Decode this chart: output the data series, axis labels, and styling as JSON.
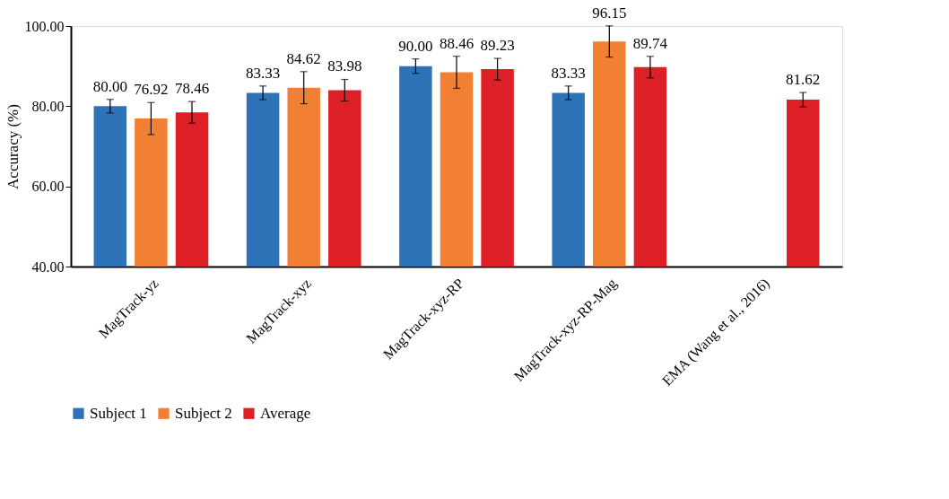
{
  "chart_data": {
    "type": "bar",
    "ylabel": "Accuracy (%)",
    "categories": [
      "MagTrack-yz",
      "MagTrack-xyz",
      "MagTrack-xyz-RP",
      "MagTrack-xyz-RP-Mag",
      "EMA (Wang et al., 2016)"
    ],
    "series": [
      {
        "name": "Subject 1",
        "color": "#2e72b8",
        "values": [
          80.0,
          83.33,
          90.0,
          83.33,
          null
        ],
        "value_labels": [
          "80.00",
          "83.33",
          "90.00",
          "83.33",
          null
        ],
        "errors": [
          1.7,
          1.7,
          1.8,
          1.7,
          null
        ]
      },
      {
        "name": "Subject 2",
        "color": "#f28034",
        "values": [
          76.92,
          84.62,
          88.46,
          96.15,
          null
        ],
        "value_labels": [
          "76.92",
          "84.62",
          "88.46",
          "96.15",
          null
        ],
        "errors": [
          4.0,
          4.0,
          4.0,
          3.9,
          null
        ]
      },
      {
        "name": "Average",
        "color": "#dd1f26",
        "values": [
          78.46,
          83.98,
          89.23,
          89.74,
          81.62
        ],
        "value_labels": [
          "78.46",
          "83.98",
          "89.23",
          "89.74",
          "81.62"
        ],
        "errors": [
          2.7,
          2.7,
          2.7,
          2.7,
          1.8
        ]
      }
    ],
    "ylim": [
      40,
      100
    ],
    "yticks": [
      {
        "value": 40,
        "label": "40.00"
      },
      {
        "value": 60,
        "label": "60.00"
      },
      {
        "value": 80,
        "label": "80.00"
      },
      {
        "value": 100,
        "label": "100.00"
      }
    ],
    "grid": false,
    "legend": "bottom"
  }
}
